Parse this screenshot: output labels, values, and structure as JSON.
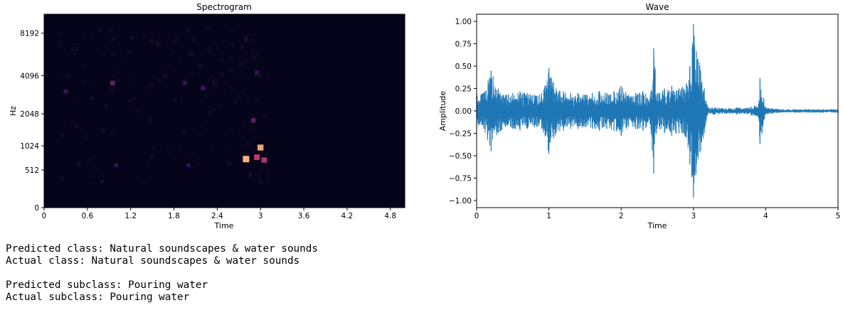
{
  "chart_data": [
    {
      "type": "heatmap",
      "title": "Spectrogram",
      "xlabel": "Time",
      "ylabel": "Hz",
      "x_ticks": [
        "0",
        "0.6",
        "1.2",
        "1.8",
        "2.4",
        "3",
        "3.6",
        "4.2",
        "4.8"
      ],
      "x_tick_values": [
        0,
        0.6,
        1.2,
        1.8,
        2.4,
        3.0,
        3.6,
        4.2,
        4.8
      ],
      "y_ticks": [
        "0",
        "512",
        "1024",
        "2048",
        "4096",
        "8192"
      ],
      "y_tick_values": [
        0,
        512,
        1024,
        2048,
        4096,
        8192
      ],
      "yscale": "mel",
      "xlim": [
        0,
        5.0
      ],
      "ylim": [
        0,
        11025
      ],
      "colormap": "magma",
      "background_color": "#05041a",
      "hotspots": [
        {
          "time": 2.8,
          "hz": 720,
          "intensity": 1.0
        },
        {
          "time": 3.0,
          "hz": 980,
          "intensity": 0.85
        },
        {
          "time": 3.05,
          "hz": 700,
          "intensity": 0.6
        },
        {
          "time": 2.95,
          "hz": 760,
          "intensity": 0.7
        },
        {
          "time": 2.9,
          "hz": 1800,
          "intensity": 0.35
        },
        {
          "time": 2.95,
          "hz": 4300,
          "intensity": 0.3
        },
        {
          "time": 0.95,
          "hz": 3600,
          "intensity": 0.4
        },
        {
          "time": 0.3,
          "hz": 3100,
          "intensity": 0.3
        },
        {
          "time": 1.95,
          "hz": 3600,
          "intensity": 0.25
        },
        {
          "time": 2.2,
          "hz": 3300,
          "intensity": 0.25
        },
        {
          "time": 1.0,
          "hz": 600,
          "intensity": 0.2
        },
        {
          "time": 2.0,
          "hz": 600,
          "intensity": 0.15
        }
      ]
    },
    {
      "type": "line",
      "title": "Wave",
      "xlabel": "Time",
      "ylabel": "Amplitude",
      "xlim": [
        0,
        5
      ],
      "ylim": [
        -1.08,
        1.08
      ],
      "x_ticks": [
        "0",
        "1",
        "2",
        "3",
        "4",
        "5"
      ],
      "x_tick_values": [
        0,
        1,
        2,
        3,
        4,
        5
      ],
      "y_ticks": [
        "1.00",
        "0.75",
        "0.50",
        "0.25",
        "0.00",
        "−0.25",
        "−0.50",
        "−0.75",
        "−1.00"
      ],
      "y_tick_values": [
        1.0,
        0.75,
        0.5,
        0.25,
        0.0,
        -0.25,
        -0.5,
        -0.75,
        -1.0
      ],
      "color": "#1f77b4",
      "series": [
        {
          "x": [
            0,
            0.1,
            0.2,
            0.3,
            0.4,
            0.5,
            0.6,
            0.7,
            0.8,
            0.9,
            1.0,
            1.1,
            1.2,
            1.3,
            1.4,
            1.5,
            1.6,
            1.7,
            1.8,
            1.9,
            2.0,
            2.1,
            2.2,
            2.3,
            2.4,
            2.45,
            2.5,
            2.6,
            2.7,
            2.8,
            2.9,
            2.95,
            3.0,
            3.1,
            3.15,
            3.2,
            3.3,
            3.4,
            3.5,
            3.6,
            3.7,
            3.8,
            3.9,
            3.92,
            4.0,
            4.2,
            4.4,
            4.6,
            4.8,
            5.0
          ],
          "envelope_max": [
            0.2,
            0.2,
            0.45,
            0.25,
            0.18,
            0.2,
            0.22,
            0.2,
            0.18,
            0.2,
            0.48,
            0.25,
            0.22,
            0.2,
            0.2,
            0.18,
            0.2,
            0.22,
            0.2,
            0.22,
            0.28,
            0.18,
            0.2,
            0.22,
            0.15,
            0.7,
            0.2,
            0.25,
            0.28,
            0.25,
            0.3,
            0.5,
            0.97,
            0.45,
            0.25,
            0.04,
            0.04,
            0.03,
            0.03,
            0.04,
            0.03,
            0.05,
            0.08,
            0.37,
            0.04,
            0.02,
            0.02,
            0.02,
            0.02,
            0.02
          ],
          "envelope_min": [
            -0.2,
            -0.2,
            -0.45,
            -0.25,
            -0.18,
            -0.2,
            -0.22,
            -0.2,
            -0.18,
            -0.2,
            -0.48,
            -0.25,
            -0.22,
            -0.2,
            -0.2,
            -0.18,
            -0.2,
            -0.22,
            -0.2,
            -0.22,
            -0.28,
            -0.18,
            -0.2,
            -0.22,
            -0.15,
            -0.7,
            -0.2,
            -0.25,
            -0.28,
            -0.25,
            -0.3,
            -0.6,
            -0.97,
            -0.45,
            -0.25,
            -0.04,
            -0.04,
            -0.03,
            -0.03,
            -0.04,
            -0.03,
            -0.05,
            -0.08,
            -0.37,
            -0.04,
            -0.02,
            -0.02,
            -0.02,
            -0.02,
            -0.02
          ]
        }
      ]
    }
  ],
  "output": {
    "predicted_class": "Predicted class: Natural soundscapes & water sounds",
    "actual_class": "Actual class: Natural soundscapes & water sounds",
    "predicted_subclass": "Predicted subclass: Pouring water",
    "actual_subclass": "Actual subclass: Pouring water"
  }
}
